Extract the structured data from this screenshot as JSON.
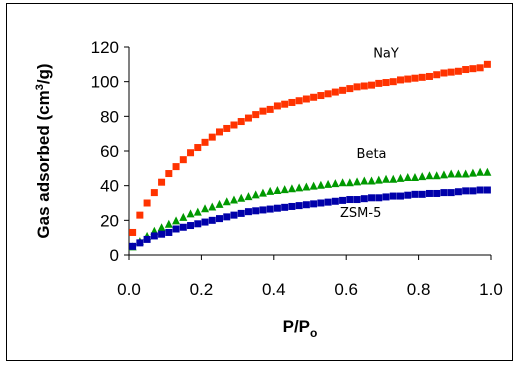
{
  "chart_data": {
    "type": "scatter",
    "xlabel": "P/Po",
    "xlabel_parts": {
      "main": "P/P",
      "sub": "o"
    },
    "ylabel": "Gas adsorbed (cm3/g)",
    "ylabel_parts": {
      "main": "Gas adsorbed (cm",
      "sup": "3",
      "tail": "/g)"
    },
    "xlim": [
      0,
      1.0
    ],
    "ylim": [
      0,
      120
    ],
    "x_ticks": [
      0.0,
      0.2,
      0.4,
      0.6,
      0.8,
      1.0
    ],
    "x_tick_labels": [
      "0.0",
      "0.2",
      "0.4",
      "0.6",
      "0.8",
      "1.0"
    ],
    "y_ticks": [
      0,
      20,
      40,
      60,
      80,
      100,
      120
    ],
    "y_tick_labels": [
      "0",
      "20",
      "40",
      "60",
      "80",
      "100",
      "120"
    ],
    "grid": false,
    "legend": "none",
    "series": [
      {
        "name": "NaY",
        "color": "#ff3300",
        "marker": "square",
        "x": [
          0.01,
          0.03,
          0.05,
          0.07,
          0.09,
          0.11,
          0.13,
          0.15,
          0.17,
          0.19,
          0.21,
          0.23,
          0.25,
          0.27,
          0.29,
          0.31,
          0.33,
          0.35,
          0.37,
          0.39,
          0.41,
          0.43,
          0.45,
          0.47,
          0.49,
          0.51,
          0.53,
          0.55,
          0.57,
          0.59,
          0.61,
          0.63,
          0.65,
          0.67,
          0.69,
          0.71,
          0.73,
          0.75,
          0.77,
          0.79,
          0.81,
          0.83,
          0.85,
          0.87,
          0.89,
          0.91,
          0.93,
          0.95,
          0.97,
          0.99
        ],
        "values": [
          13,
          23,
          30,
          36,
          42,
          47,
          51,
          55,
          59,
          62,
          65,
          68,
          71,
          73,
          75,
          77,
          79,
          81,
          83,
          84,
          86,
          87,
          88,
          89,
          90,
          91,
          92,
          93,
          94,
          95,
          96,
          97,
          97.5,
          98,
          99,
          99.5,
          100,
          101,
          101.5,
          102,
          102.5,
          103,
          104,
          105,
          105.5,
          106,
          107,
          107.5,
          108,
          110
        ]
      },
      {
        "name": "Beta",
        "color": "#009900",
        "marker": "triangle",
        "x": [
          0.01,
          0.03,
          0.05,
          0.07,
          0.09,
          0.11,
          0.13,
          0.15,
          0.17,
          0.19,
          0.21,
          0.23,
          0.25,
          0.27,
          0.29,
          0.31,
          0.33,
          0.35,
          0.37,
          0.39,
          0.41,
          0.43,
          0.45,
          0.47,
          0.49,
          0.51,
          0.53,
          0.55,
          0.57,
          0.59,
          0.61,
          0.63,
          0.65,
          0.67,
          0.69,
          0.71,
          0.73,
          0.75,
          0.77,
          0.79,
          0.81,
          0.83,
          0.85,
          0.87,
          0.89,
          0.91,
          0.93,
          0.95,
          0.97,
          0.99
        ],
        "values": [
          5,
          8,
          11,
          14,
          16,
          18,
          20,
          22,
          24,
          25,
          27,
          28,
          29.5,
          31,
          32,
          33,
          34,
          35,
          36,
          37,
          37.5,
          38,
          38.5,
          39,
          39.5,
          40,
          40.5,
          41,
          41.5,
          42,
          42,
          42.5,
          43,
          43,
          43.5,
          44,
          44,
          44.5,
          45,
          45,
          45.5,
          46,
          46,
          46.5,
          47,
          47,
          47,
          47.5,
          48,
          48
        ]
      },
      {
        "name": "ZSM-5",
        "color": "#0000aa",
        "marker": "square",
        "x": [
          0.01,
          0.03,
          0.05,
          0.07,
          0.09,
          0.11,
          0.13,
          0.15,
          0.17,
          0.19,
          0.21,
          0.23,
          0.25,
          0.27,
          0.29,
          0.31,
          0.33,
          0.35,
          0.37,
          0.39,
          0.41,
          0.43,
          0.45,
          0.47,
          0.49,
          0.51,
          0.53,
          0.55,
          0.57,
          0.59,
          0.61,
          0.63,
          0.65,
          0.67,
          0.69,
          0.71,
          0.73,
          0.75,
          0.77,
          0.79,
          0.81,
          0.83,
          0.85,
          0.87,
          0.89,
          0.91,
          0.93,
          0.95,
          0.97,
          0.99
        ],
        "values": [
          5,
          7,
          9,
          11,
          12,
          13,
          15,
          16,
          17,
          18,
          19,
          20,
          21,
          22,
          23,
          24,
          25,
          25.5,
          26,
          26.5,
          27,
          27.5,
          28,
          28.5,
          29,
          29.5,
          30,
          30.5,
          31,
          31.5,
          32,
          32,
          32.5,
          33,
          33,
          33.5,
          34,
          34,
          34.5,
          35,
          35,
          35.5,
          35.5,
          36,
          36,
          36.5,
          37,
          37,
          37.5,
          37.5
        ]
      }
    ],
    "annotations": [
      {
        "text": "NaY",
        "x": 0.71,
        "y": 114
      },
      {
        "text": "Beta",
        "x": 0.67,
        "y": 56
      },
      {
        "text": "ZSM-5",
        "x": 0.64,
        "y": 22
      }
    ]
  }
}
